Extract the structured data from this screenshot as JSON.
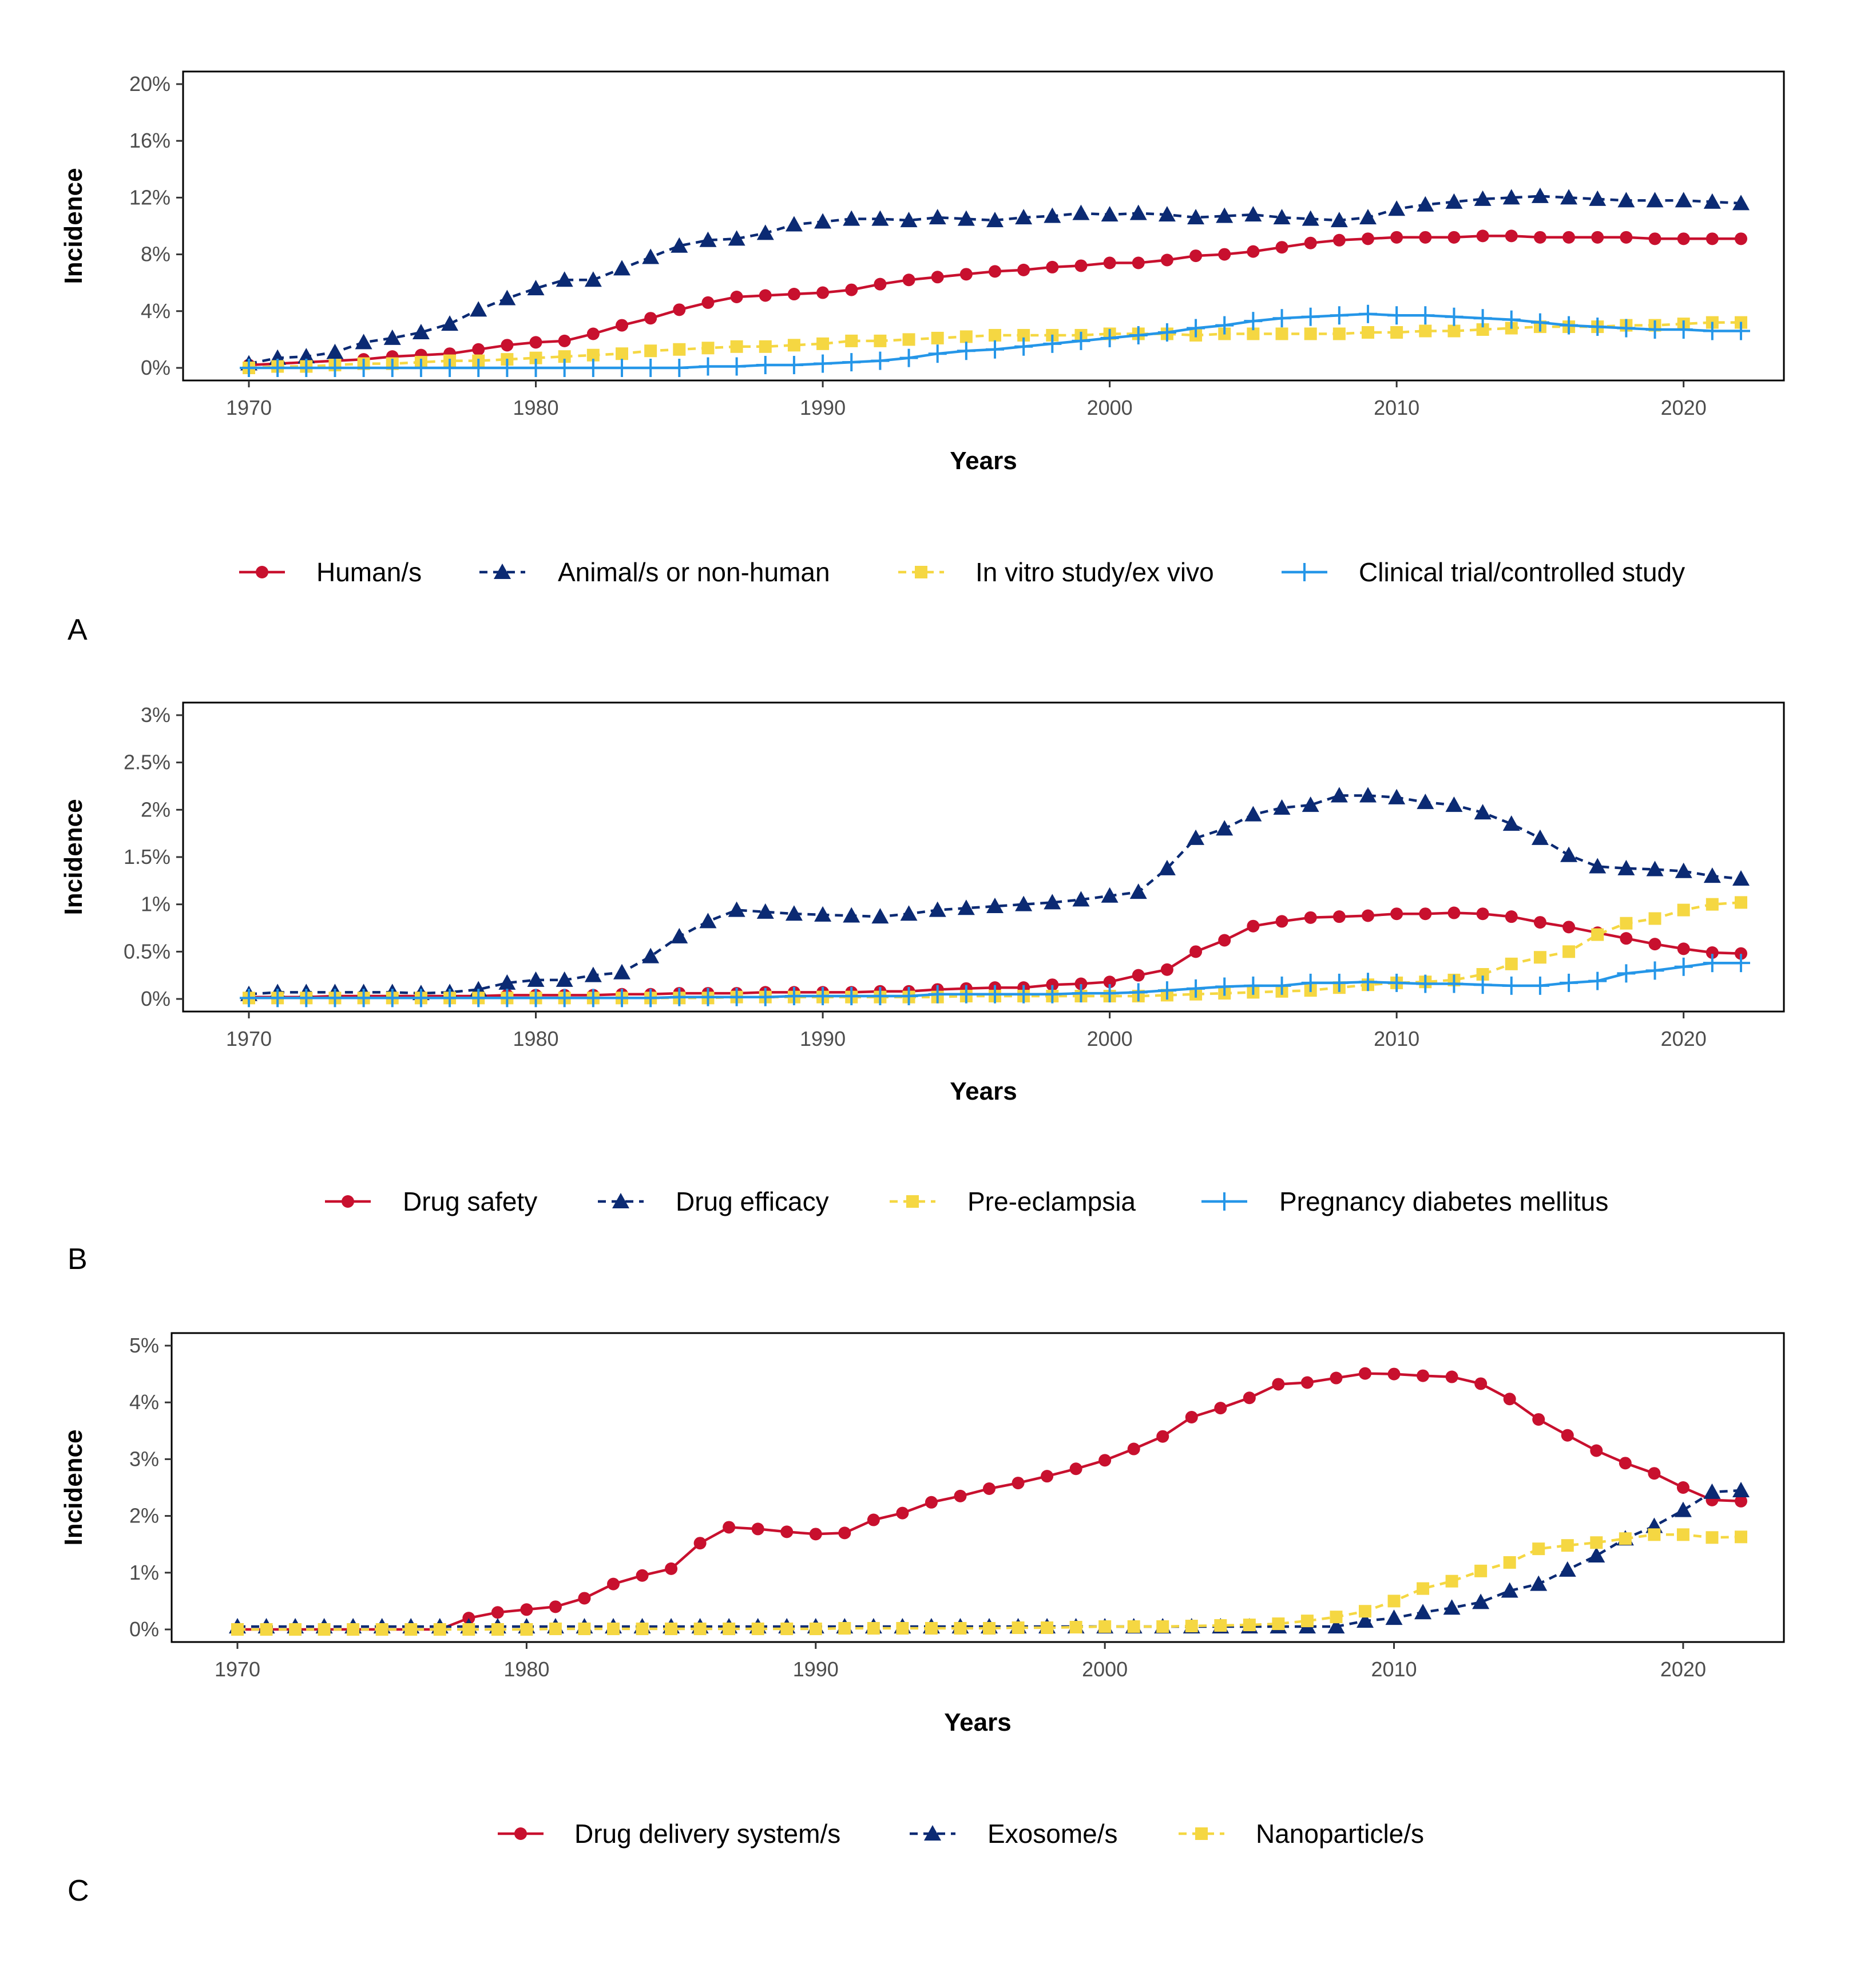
{
  "colors": {
    "red": "#c8102e",
    "navy": "#0b2a73",
    "yellow": "#f5d742",
    "blue": "#2596e8"
  },
  "chart_data": [
    {
      "type": "line",
      "panel_label": "A",
      "xlabel": "Years",
      "ylabel": "Incidence",
      "xlim": [
        1970,
        2022
      ],
      "ylim": [
        0,
        20
      ],
      "y_ticks": [
        0,
        4,
        8,
        12,
        16,
        20
      ],
      "y_tick_labels": [
        "0%",
        "4%",
        "8%",
        "12%",
        "16%",
        "20%"
      ],
      "x_ticks": [
        1970,
        1980,
        1990,
        2000,
        2010,
        2020
      ],
      "x_tick_labels": [
        "1970",
        "1980",
        "1990",
        "2000",
        "2010",
        "2020"
      ],
      "legend_position": "bottom",
      "series": [
        {
          "name": "Human/s",
          "color": "red",
          "marker": "circle",
          "dash": "solid",
          "values": [
            0.2,
            0.3,
            0.4,
            0.5,
            0.6,
            0.8,
            0.9,
            1.0,
            1.3,
            1.6,
            1.8,
            1.9,
            2.4,
            3.0,
            3.5,
            4.1,
            4.6,
            5.0,
            5.1,
            5.2,
            5.3,
            5.5,
            5.9,
            6.2,
            6.4,
            6.6,
            6.8,
            6.9,
            7.1,
            7.2,
            7.4,
            7.4,
            7.6,
            7.9,
            8.0,
            8.2,
            8.5,
            8.8,
            9.0,
            9.1,
            9.2,
            9.2,
            9.2,
            9.3,
            9.3,
            9.2,
            9.2,
            9.2,
            9.2,
            9.1,
            9.1,
            9.1,
            9.1
          ]
        },
        {
          "name": "Animal/s or non-human",
          "color": "navy",
          "marker": "triangle",
          "dash": "dashed",
          "values": [
            0.3,
            0.7,
            0.8,
            1.1,
            1.8,
            2.1,
            2.5,
            3.1,
            4.1,
            4.9,
            5.6,
            6.2,
            6.2,
            7.0,
            7.8,
            8.6,
            9.0,
            9.1,
            9.5,
            10.1,
            10.3,
            10.5,
            10.5,
            10.4,
            10.6,
            10.5,
            10.4,
            10.6,
            10.7,
            10.9,
            10.8,
            10.9,
            10.8,
            10.6,
            10.7,
            10.8,
            10.6,
            10.5,
            10.4,
            10.6,
            11.2,
            11.5,
            11.7,
            11.9,
            12.0,
            12.1,
            12.0,
            11.9,
            11.8,
            11.8,
            11.8,
            11.7,
            11.6
          ]
        },
        {
          "name": "In vitro study/ex vivo",
          "color": "yellow",
          "marker": "square",
          "dash": "dashed",
          "values": [
            0.0,
            0.1,
            0.1,
            0.2,
            0.3,
            0.3,
            0.4,
            0.5,
            0.5,
            0.6,
            0.7,
            0.8,
            0.9,
            1.0,
            1.2,
            1.3,
            1.4,
            1.5,
            1.5,
            1.6,
            1.7,
            1.9,
            1.9,
            2.0,
            2.1,
            2.2,
            2.3,
            2.3,
            2.3,
            2.3,
            2.4,
            2.4,
            2.4,
            2.3,
            2.4,
            2.4,
            2.4,
            2.4,
            2.4,
            2.5,
            2.5,
            2.6,
            2.6,
            2.7,
            2.8,
            2.9,
            2.9,
            2.9,
            3.0,
            3.0,
            3.1,
            3.2,
            3.2
          ]
        },
        {
          "name": "Clinical trial/controlled study",
          "color": "blue",
          "marker": "plus",
          "dash": "solid",
          "values": [
            0.0,
            0.0,
            0.0,
            0.0,
            0.0,
            0.0,
            0.0,
            0.0,
            0.0,
            0.0,
            0.0,
            0.0,
            0.0,
            0.0,
            0.0,
            0.0,
            0.1,
            0.1,
            0.2,
            0.2,
            0.3,
            0.4,
            0.5,
            0.7,
            1.0,
            1.2,
            1.3,
            1.5,
            1.7,
            1.9,
            2.1,
            2.3,
            2.5,
            2.8,
            3.0,
            3.3,
            3.5,
            3.6,
            3.7,
            3.8,
            3.7,
            3.7,
            3.6,
            3.5,
            3.4,
            3.2,
            3.0,
            2.9,
            2.8,
            2.7,
            2.7,
            2.6,
            2.6
          ]
        }
      ]
    },
    {
      "type": "line",
      "panel_label": "B",
      "xlabel": "Years",
      "ylabel": "Incidence",
      "xlim": [
        1970,
        2022
      ],
      "ylim": [
        0,
        3
      ],
      "y_ticks": [
        0,
        0.5,
        1,
        1.5,
        2,
        2.5,
        3
      ],
      "y_tick_labels": [
        "0%",
        "0.5%",
        "1%",
        "1.5%",
        "2%",
        "2.5%",
        "3%"
      ],
      "x_ticks": [
        1970,
        1980,
        1990,
        2000,
        2010,
        2020
      ],
      "x_tick_labels": [
        "1970",
        "1980",
        "1990",
        "2000",
        "2010",
        "2020"
      ],
      "legend_position": "bottom",
      "series": [
        {
          "name": "Drug safety",
          "color": "red",
          "marker": "circle",
          "dash": "solid",
          "values": [
            0.02,
            0.02,
            0.02,
            0.03,
            0.03,
            0.03,
            0.03,
            0.03,
            0.03,
            0.04,
            0.04,
            0.04,
            0.04,
            0.05,
            0.05,
            0.06,
            0.06,
            0.06,
            0.07,
            0.07,
            0.07,
            0.07,
            0.08,
            0.08,
            0.1,
            0.11,
            0.12,
            0.12,
            0.15,
            0.16,
            0.18,
            0.25,
            0.31,
            0.5,
            0.62,
            0.77,
            0.82,
            0.86,
            0.87,
            0.88,
            0.9,
            0.9,
            0.91,
            0.9,
            0.87,
            0.81,
            0.76,
            0.7,
            0.64,
            0.58,
            0.53,
            0.49,
            0.48
          ]
        },
        {
          "name": "Drug efficacy",
          "color": "navy",
          "marker": "triangle",
          "dash": "dashed",
          "values": [
            0.05,
            0.07,
            0.07,
            0.07,
            0.07,
            0.07,
            0.06,
            0.07,
            0.1,
            0.17,
            0.2,
            0.2,
            0.25,
            0.28,
            0.45,
            0.66,
            0.82,
            0.94,
            0.92,
            0.9,
            0.89,
            0.88,
            0.87,
            0.9,
            0.94,
            0.96,
            0.98,
            1.0,
            1.02,
            1.05,
            1.09,
            1.13,
            1.38,
            1.7,
            1.8,
            1.95,
            2.02,
            2.05,
            2.15,
            2.15,
            2.13,
            2.08,
            2.05,
            1.97,
            1.85,
            1.7,
            1.52,
            1.4,
            1.38,
            1.37,
            1.35,
            1.3,
            1.27
          ]
        },
        {
          "name": "Pre-eclampsia",
          "color": "yellow",
          "marker": "square",
          "dash": "dashed",
          "values": [
            0.01,
            0.01,
            0.01,
            0.01,
            0.01,
            0.01,
            0.01,
            0.01,
            0.01,
            0.01,
            0.01,
            0.01,
            0.01,
            0.01,
            0.01,
            0.01,
            0.01,
            0.02,
            0.02,
            0.02,
            0.02,
            0.02,
            0.02,
            0.02,
            0.02,
            0.03,
            0.03,
            0.03,
            0.03,
            0.03,
            0.03,
            0.03,
            0.04,
            0.05,
            0.06,
            0.07,
            0.08,
            0.09,
            0.12,
            0.15,
            0.17,
            0.18,
            0.2,
            0.26,
            0.37,
            0.44,
            0.5,
            0.68,
            0.8,
            0.85,
            0.94,
            1.0,
            1.02
          ]
        },
        {
          "name": "Pregnancy diabetes mellitus",
          "color": "blue",
          "marker": "plus",
          "dash": "solid",
          "values": [
            0.01,
            0.01,
            0.01,
            0.01,
            0.01,
            0.01,
            0.01,
            0.01,
            0.01,
            0.01,
            0.01,
            0.01,
            0.01,
            0.01,
            0.01,
            0.02,
            0.02,
            0.02,
            0.02,
            0.03,
            0.03,
            0.03,
            0.03,
            0.03,
            0.05,
            0.05,
            0.05,
            0.05,
            0.05,
            0.06,
            0.06,
            0.07,
            0.09,
            0.11,
            0.13,
            0.14,
            0.14,
            0.17,
            0.17,
            0.18,
            0.17,
            0.16,
            0.16,
            0.15,
            0.14,
            0.14,
            0.17,
            0.19,
            0.27,
            0.3,
            0.34,
            0.38,
            0.38
          ]
        }
      ]
    },
    {
      "type": "line",
      "panel_label": "C",
      "xlabel": "Years",
      "ylabel": "Incidence",
      "xlim": [
        1970,
        2022
      ],
      "ylim": [
        0,
        5
      ],
      "y_ticks": [
        0,
        1,
        2,
        3,
        4,
        5
      ],
      "y_tick_labels": [
        "0%",
        "1%",
        "2%",
        "3%",
        "4%",
        "5%"
      ],
      "x_ticks": [
        1970,
        1980,
        1990,
        2000,
        2010,
        2020
      ],
      "x_tick_labels": [
        "1970",
        "1980",
        "1990",
        "2000",
        "2010",
        "2020"
      ],
      "legend_position": "bottom",
      "series": [
        {
          "name": "Drug delivery system/s",
          "color": "red",
          "marker": "circle",
          "dash": "solid",
          "values": [
            0.0,
            0.0,
            0.0,
            0.0,
            0.0,
            0.0,
            0.0,
            0.0,
            0.2,
            0.3,
            0.35,
            0.4,
            0.55,
            0.8,
            0.95,
            1.07,
            1.52,
            1.8,
            1.77,
            1.72,
            1.68,
            1.7,
            1.93,
            2.05,
            2.24,
            2.35,
            2.48,
            2.58,
            2.7,
            2.83,
            2.98,
            3.18,
            3.4,
            3.74,
            3.9,
            4.08,
            4.32,
            4.35,
            4.43,
            4.51,
            4.5,
            4.47,
            4.45,
            4.33,
            4.06,
            3.7,
            3.42,
            3.15,
            2.93,
            2.75,
            2.5,
            2.28,
            2.26
          ]
        },
        {
          "name": "Exosome/s",
          "color": "navy",
          "marker": "triangle",
          "dash": "dashed",
          "values": [
            0.05,
            0.05,
            0.05,
            0.05,
            0.05,
            0.05,
            0.05,
            0.05,
            0.05,
            0.05,
            0.05,
            0.05,
            0.05,
            0.05,
            0.05,
            0.05,
            0.05,
            0.05,
            0.05,
            0.05,
            0.05,
            0.05,
            0.05,
            0.05,
            0.05,
            0.05,
            0.05,
            0.05,
            0.05,
            0.05,
            0.05,
            0.05,
            0.05,
            0.05,
            0.05,
            0.05,
            0.05,
            0.05,
            0.05,
            0.15,
            0.2,
            0.3,
            0.38,
            0.48,
            0.68,
            0.8,
            1.05,
            1.3,
            1.6,
            1.82,
            2.1,
            2.42,
            2.45
          ]
        },
        {
          "name": "Nanoparticle/s",
          "color": "yellow",
          "marker": "square",
          "dash": "dashed",
          "values": [
            0.0,
            0.0,
            0.0,
            0.0,
            0.0,
            0.0,
            0.0,
            0.0,
            0.0,
            0.0,
            0.0,
            0.01,
            0.01,
            0.01,
            0.01,
            0.01,
            0.01,
            0.01,
            0.01,
            0.01,
            0.01,
            0.02,
            0.02,
            0.02,
            0.02,
            0.02,
            0.02,
            0.03,
            0.03,
            0.04,
            0.05,
            0.05,
            0.05,
            0.06,
            0.07,
            0.08,
            0.1,
            0.15,
            0.22,
            0.32,
            0.5,
            0.72,
            0.85,
            1.03,
            1.18,
            1.42,
            1.48,
            1.53,
            1.6,
            1.67,
            1.67,
            1.62,
            1.63
          ]
        }
      ]
    }
  ]
}
